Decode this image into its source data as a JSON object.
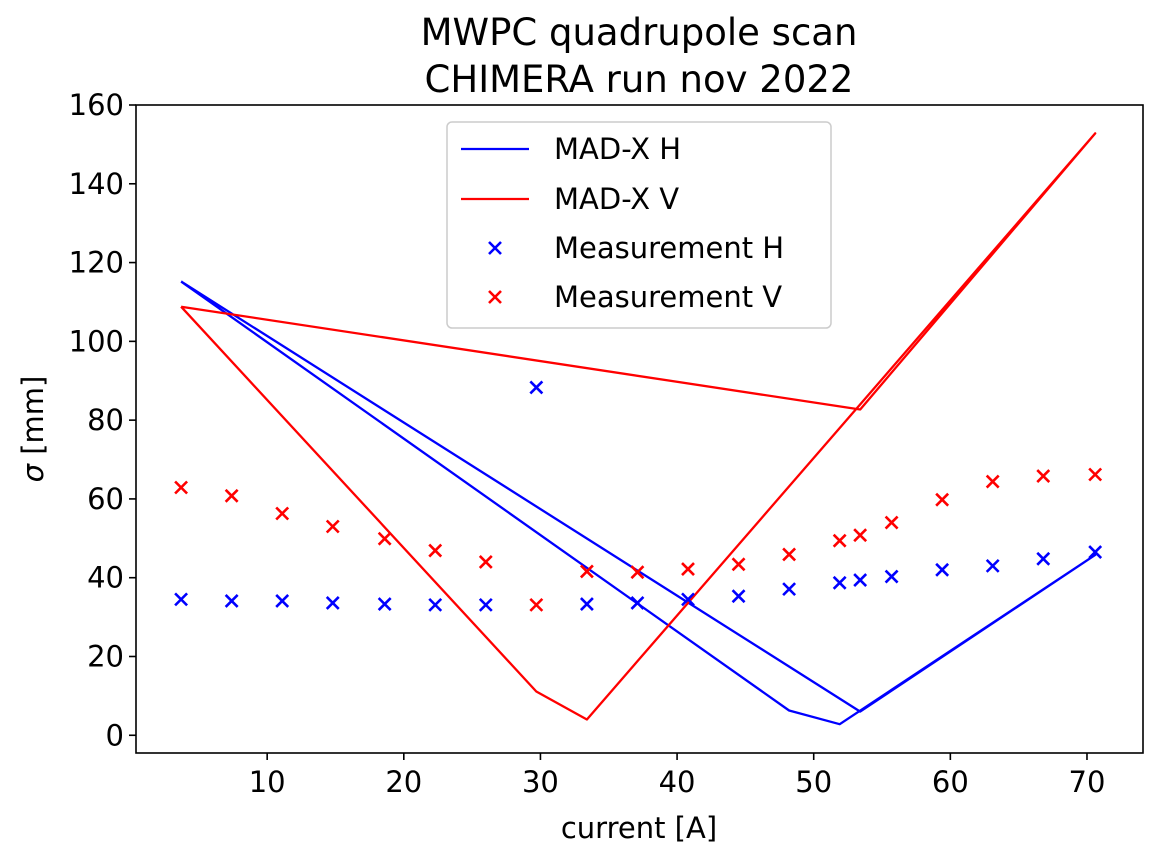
{
  "chart_data": {
    "type": "line",
    "title": "MWPC quadrupole scan",
    "subtitle": "CHIMERA run nov 2022",
    "xlabel": "current [A]",
    "ylabel_symbol": "σ",
    "ylabel_unit": " [mm]",
    "xlim": [
      0.4,
      74.1
    ],
    "ylim": [
      -4.5,
      160
    ],
    "xticks": [
      10,
      20,
      30,
      40,
      50,
      60,
      70
    ],
    "yticks": [
      0,
      20,
      40,
      60,
      80,
      100,
      120,
      140,
      160
    ],
    "grid": false,
    "legend_position": "upper center",
    "series": [
      {
        "name": "MAD-X H",
        "kind": "line",
        "color": "#0000ff",
        "x": [
          3.7,
          53.4,
          70.6,
          51.9,
          48.2,
          3.7
        ],
        "y": [
          115.2,
          6.0,
          45.8,
          2.8,
          6.3,
          115.2
        ]
      },
      {
        "name": "MAD-X V",
        "kind": "line",
        "color": "#ff0000",
        "x": [
          3.7,
          53.4,
          70.6,
          33.4,
          29.7,
          3.7
        ],
        "y": [
          108.8,
          82.7,
          152.8,
          4.0,
          11.1,
          108.8
        ]
      },
      {
        "name": "Measurement H",
        "kind": "scatter",
        "marker": "x",
        "color": "#0000ff",
        "x": [
          3.7,
          7.4,
          11.1,
          14.8,
          18.6,
          22.3,
          26.0,
          29.7,
          33.4,
          37.1,
          40.8,
          44.5,
          48.2,
          51.9,
          53.4,
          55.7,
          59.4,
          63.1,
          66.8,
          70.6
        ],
        "y": [
          34.5,
          34.1,
          34.1,
          33.6,
          33.3,
          33.1,
          33.1,
          88.3,
          33.3,
          33.6,
          34.5,
          35.3,
          37.1,
          38.7,
          39.4,
          40.3,
          42.0,
          43.0,
          44.8,
          46.5
        ]
      },
      {
        "name": "Measurement V",
        "kind": "scatter",
        "marker": "x",
        "color": "#ff0000",
        "x": [
          3.7,
          7.4,
          11.1,
          14.8,
          18.6,
          22.3,
          26.0,
          29.7,
          33.4,
          37.1,
          40.8,
          44.5,
          48.2,
          51.9,
          53.4,
          55.7,
          59.4,
          63.1,
          66.8,
          70.6
        ],
        "y": [
          62.9,
          60.8,
          56.3,
          53.0,
          49.9,
          46.9,
          44.0,
          33.1,
          41.6,
          41.4,
          42.2,
          43.4,
          45.9,
          49.4,
          50.8,
          54.0,
          59.8,
          64.4,
          65.8,
          66.2
        ]
      }
    ]
  }
}
